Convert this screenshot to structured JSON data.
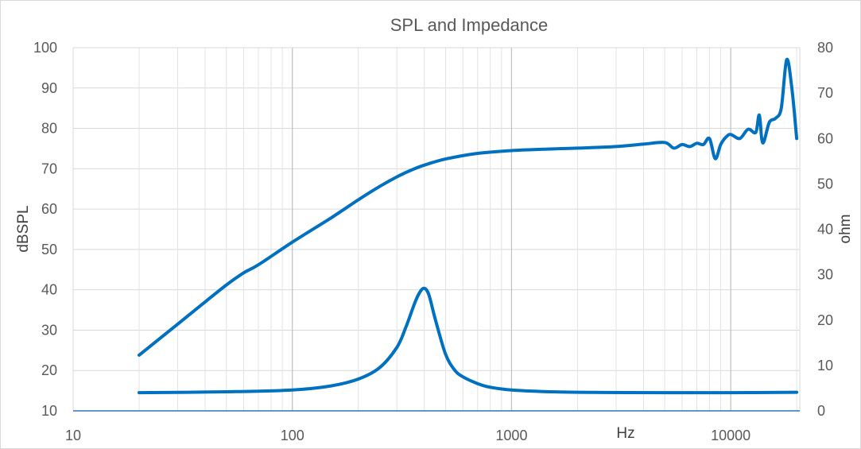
{
  "chart_data": {
    "type": "line",
    "title": "SPL and Impedance",
    "xlabel": "Hz",
    "ylabel": "dBSPL",
    "y2label": "ohm",
    "x_scale": "log",
    "xlim": [
      10,
      20000
    ],
    "ylim": [
      10,
      100
    ],
    "y2lim": [
      0,
      80
    ],
    "x_ticks": [
      "10",
      "100",
      "1000",
      "10000"
    ],
    "y_ticks": [
      "10",
      "20",
      "30",
      "40",
      "50",
      "60",
      "70",
      "80",
      "90",
      "100"
    ],
    "y2_ticks": [
      "0",
      "10",
      "20",
      "30",
      "40",
      "50",
      "60",
      "70",
      "80"
    ],
    "grid": true,
    "line_color": "#0070c0",
    "series": [
      {
        "axis": "left",
        "x": [
          20,
          30,
          40,
          50,
          60,
          70,
          100,
          150,
          200,
          250,
          300,
          350,
          400,
          500,
          700,
          1000,
          1500,
          2000,
          3000,
          4000,
          5000,
          5500,
          6000,
          6500,
          7000,
          7500,
          8000,
          8500,
          9000,
          9500,
          10000,
          11000,
          12000,
          13000,
          13500,
          14000,
          15000,
          16000,
          17000,
          18000,
          19000,
          20000
        ],
        "values": [
          23.8,
          31.5,
          37,
          41.2,
          44.2,
          46.2,
          51.8,
          57.8,
          62.3,
          65.6,
          68,
          69.7,
          70.9,
          72.4,
          73.8,
          74.5,
          74.9,
          75.1,
          75.5,
          76.1,
          76.5,
          75.1,
          76,
          75.5,
          76.3,
          76,
          77.5,
          72.5,
          76,
          77.8,
          78.5,
          77.5,
          79.8,
          79,
          83.3,
          76.4,
          81.5,
          82.5,
          85,
          97,
          90,
          77.5
        ]
      },
      {
        "axis": "right",
        "x": [
          20,
          50,
          100,
          150,
          200,
          250,
          300,
          330,
          360,
          380,
          400,
          420,
          450,
          500,
          550,
          600,
          700,
          800,
          1000,
          1500,
          2000,
          5000,
          10000,
          20000
        ],
        "values": [
          4,
          4.2,
          4.6,
          5.5,
          7,
          9.5,
          14,
          18.5,
          23.5,
          26,
          27,
          25.5,
          20,
          12.5,
          9,
          7.5,
          6,
          5.2,
          4.6,
          4.2,
          4.1,
          4,
          4,
          4.1
        ]
      }
    ]
  }
}
